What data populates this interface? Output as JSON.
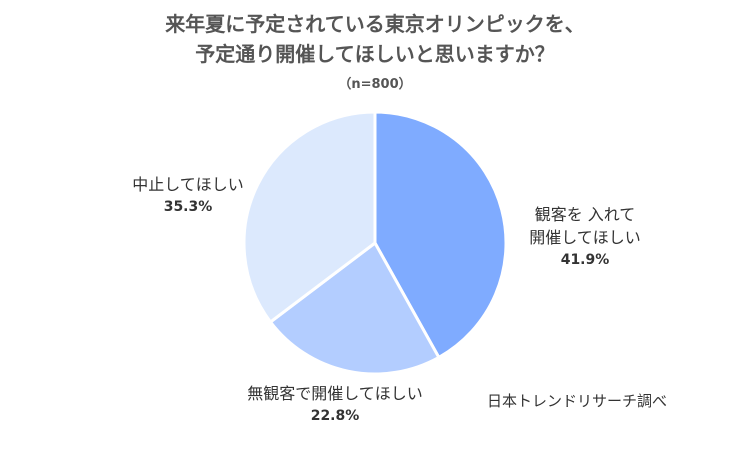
{
  "chart_data": {
    "type": "pie",
    "title_lines": [
      "来年夏に予定されている東京オリンピックを、",
      "予定通り開催してほしいと思いますか？"
    ],
    "subtitle": "（n=800）",
    "slices": [
      {
        "label_lines": [
          "観客を 入れて",
          "開催してほしい"
        ],
        "percent_label": "41.9%",
        "value": 41.9,
        "color": "#7fabff"
      },
      {
        "label_lines": [
          "無観客で開催してほしい"
        ],
        "percent_label": "22.8%",
        "value": 22.8,
        "color": "#b3cdff"
      },
      {
        "label_lines": [
          "中止してほしい"
        ],
        "percent_label": "35.3%",
        "value": 35.3,
        "color": "#dce9fd"
      }
    ],
    "legend": "none",
    "source": "日本トレンドリサーチ調べ"
  }
}
